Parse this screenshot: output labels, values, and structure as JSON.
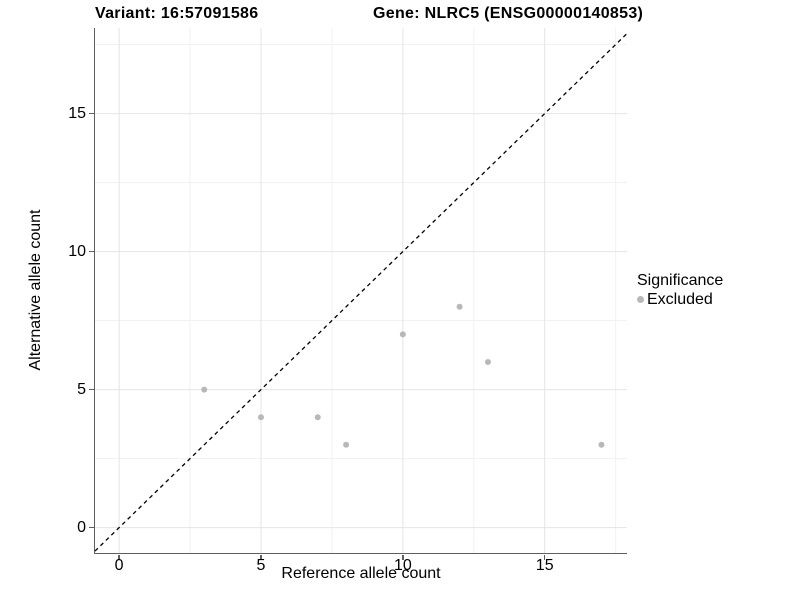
{
  "chart_data": {
    "type": "scatter",
    "variant_title": "Variant: 16:57091586",
    "gene_title": "Gene: NLRC5 (ENSG00000140853)",
    "xlabel": "Reference allele count",
    "ylabel": "Alternative allele count",
    "xlim": [
      -0.85,
      17.9
    ],
    "ylim": [
      -0.92,
      18.1
    ],
    "xticks": [
      0,
      5,
      10,
      15
    ],
    "yticks": [
      0,
      5,
      10,
      15
    ],
    "x_minor_gridlines": [
      2.5,
      7.5,
      12.5,
      17.5
    ],
    "y_minor_gridlines": [
      2.5,
      7.5,
      12.5,
      17.5
    ],
    "grid": "major+minor",
    "identity_line": {
      "style": "dashed",
      "equation": "y = x",
      "color": "#000000"
    },
    "legend": {
      "title": "Significance",
      "position": "right",
      "items": [
        {
          "label": "Excluded",
          "color": "#b8b8b8"
        }
      ]
    },
    "series": [
      {
        "name": "Excluded",
        "color": "#b8b8b8",
        "marker": "circle",
        "points": [
          [
            3,
            5
          ],
          [
            5,
            4
          ],
          [
            7,
            4
          ],
          [
            8,
            3
          ],
          [
            10,
            7
          ],
          [
            12,
            8
          ],
          [
            13,
            6
          ],
          [
            17,
            3
          ]
        ]
      }
    ],
    "colors": {
      "background": "#ffffff",
      "axis_line": "#5f5f5f",
      "tick_mark": "#5f5f5f",
      "grid_major": "#e4e4e4",
      "grid_minor": "#f1f1f1",
      "text": "#000000"
    }
  }
}
